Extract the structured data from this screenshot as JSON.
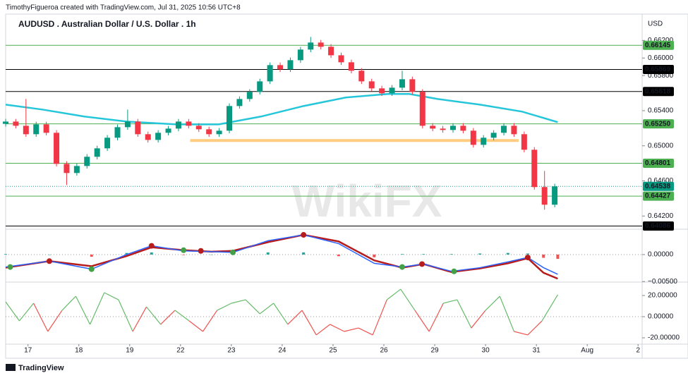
{
  "header": "TimothyFigueroa created with TradingView.com, Jul 31, 2025 10:56 UTC+8",
  "footer": "TradingView",
  "watermark": "WikiFX",
  "chart_data": [
    {
      "type": "candlestick",
      "title": "AUDUSD . Australian Dollar / U.S. Dollar . 1h",
      "currency": "USD",
      "xlim": [
        -0.44,
        12.08
      ],
      "xticks": [
        {
          "value": 0,
          "label": "17"
        },
        {
          "value": 1,
          "label": "18"
        },
        {
          "value": 2,
          "label": "19"
        },
        {
          "value": 3,
          "label": "22"
        },
        {
          "value": 4,
          "label": "23"
        },
        {
          "value": 5,
          "label": "24"
        },
        {
          "value": 6,
          "label": "25"
        },
        {
          "value": 7,
          "label": "26"
        },
        {
          "value": 8,
          "label": "29"
        },
        {
          "value": 9,
          "label": "30"
        },
        {
          "value": 10,
          "label": "31"
        },
        {
          "value": 11,
          "label": "Aug"
        },
        {
          "value": 12,
          "label": "2"
        }
      ],
      "ylim": [
        0.6405,
        0.665
      ],
      "yticks": [
        {
          "value": 0.662,
          "label": "0.66200"
        },
        {
          "value": 0.66,
          "label": "0.66000"
        },
        {
          "value": 0.658,
          "label": "0.65800"
        },
        {
          "value": 0.654,
          "label": "0.65400"
        },
        {
          "value": 0.65,
          "label": "0.65000"
        },
        {
          "value": 0.646,
          "label": "0.64600"
        },
        {
          "value": 0.642,
          "label": "0.64200"
        }
      ],
      "up_color": "#089981",
      "down_color": "#f23645",
      "x": [
        -0.44,
        -0.24,
        -0.04,
        0.16,
        0.36,
        0.56,
        0.76,
        0.96,
        1.16,
        1.36,
        1.56,
        1.76,
        1.96,
        2.16,
        2.36,
        2.56,
        2.76,
        2.96,
        3.16,
        3.36,
        3.56,
        3.76,
        3.96,
        4.16,
        4.36,
        4.56,
        4.76,
        4.96,
        5.16,
        5.36,
        5.56,
        5.76,
        5.96,
        6.16,
        6.36,
        6.56,
        6.76,
        6.96,
        7.16,
        7.36,
        7.56,
        7.76,
        7.96,
        8.16,
        8.36,
        8.56,
        8.76,
        8.96,
        9.16,
        9.36,
        9.56,
        9.76,
        9.96,
        10.16,
        10.36
      ],
      "open": [
        0.6525,
        0.65276,
        0.65228,
        0.65132,
        0.65244,
        0.65148,
        0.64794,
        0.6469,
        0.6477,
        0.64875,
        0.64971,
        0.65092,
        0.65212,
        0.65276,
        0.65132,
        0.65067,
        0.65148,
        0.65196,
        0.65276,
        0.65228,
        0.65188,
        0.65132,
        0.65172,
        0.65453,
        0.65533,
        0.65614,
        0.65734,
        0.65919,
        0.65871,
        0.65975,
        0.66096,
        0.66176,
        0.66128,
        0.66031,
        0.65951,
        0.65855,
        0.65734,
        0.65654,
        0.65598,
        0.65662,
        0.65758,
        0.65614,
        0.65228,
        0.65196,
        0.6518,
        0.65228,
        0.65172,
        0.65011,
        0.65092,
        0.65148,
        0.65228,
        0.65132,
        0.64955,
        0.6453,
        0.64329
      ],
      "high": [
        0.65306,
        0.65306,
        0.65533,
        0.65274,
        0.65274,
        0.65178,
        0.64824,
        0.648,
        0.64905,
        0.65001,
        0.65122,
        0.65242,
        0.65413,
        0.65306,
        0.65162,
        0.65178,
        0.65226,
        0.65306,
        0.65306,
        0.65258,
        0.65218,
        0.65202,
        0.65483,
        0.65563,
        0.65644,
        0.65764,
        0.65949,
        0.65949,
        0.66005,
        0.66126,
        0.6624,
        0.66206,
        0.66158,
        0.66061,
        0.65981,
        0.65885,
        0.65764,
        0.65684,
        0.65692,
        0.65855,
        0.65788,
        0.65644,
        0.65258,
        0.65226,
        0.65258,
        0.65258,
        0.65202,
        0.65122,
        0.65178,
        0.65258,
        0.65258,
        0.65162,
        0.64985,
        0.64714,
        0.64568
      ],
      "low": [
        0.6522,
        0.65198,
        0.65102,
        0.65102,
        0.65118,
        0.64764,
        0.64553,
        0.6466,
        0.6474,
        0.64845,
        0.64941,
        0.65062,
        0.65182,
        0.65102,
        0.65037,
        0.65037,
        0.65118,
        0.65166,
        0.65198,
        0.65158,
        0.65102,
        0.65102,
        0.65142,
        0.65423,
        0.65503,
        0.65584,
        0.65704,
        0.65841,
        0.65841,
        0.65945,
        0.66066,
        0.66098,
        0.66001,
        0.65921,
        0.65825,
        0.65704,
        0.65624,
        0.65568,
        0.65568,
        0.65632,
        0.65584,
        0.65198,
        0.65166,
        0.6515,
        0.6515,
        0.65142,
        0.64981,
        0.64981,
        0.65062,
        0.65118,
        0.65102,
        0.64925,
        0.645,
        0.64272,
        0.64299
      ],
      "close": [
        0.65276,
        0.65228,
        0.65132,
        0.65244,
        0.65148,
        0.64794,
        0.6469,
        0.6477,
        0.64875,
        0.64971,
        0.65092,
        0.65212,
        0.65276,
        0.65132,
        0.65067,
        0.65148,
        0.65196,
        0.65276,
        0.65228,
        0.65188,
        0.65132,
        0.65172,
        0.65453,
        0.65533,
        0.65614,
        0.65734,
        0.65919,
        0.65871,
        0.65975,
        0.66096,
        0.66176,
        0.66128,
        0.66031,
        0.65951,
        0.65855,
        0.65734,
        0.65654,
        0.65598,
        0.65662,
        0.65758,
        0.65614,
        0.65228,
        0.65196,
        0.6518,
        0.65228,
        0.65172,
        0.65011,
        0.65092,
        0.65148,
        0.65228,
        0.65132,
        0.64955,
        0.6453,
        0.64329,
        0.64538
      ],
      "lines": [
        {
          "color": "#26c6da",
          "x": [
            -0.44,
            0.28,
            1.11,
            1.94,
            2.92,
            3.75,
            4.58,
            5.42,
            6.25,
            7.08,
            7.5,
            8.06,
            8.89,
            9.72,
            10.42
          ],
          "values": [
            0.65469,
            0.65413,
            0.65333,
            0.65276,
            0.65244,
            0.65244,
            0.65333,
            0.65453,
            0.6555,
            0.6559,
            0.6559,
            0.65533,
            0.65469,
            0.65389,
            0.65269
          ]
        }
      ],
      "zone": {
        "value": 0.6506,
        "x": [
          3.19,
          9.65
        ],
        "color": "#ffcc80"
      },
      "levels": [
        {
          "value": 0.66145,
          "label": "0.66145",
          "color": "#4caf50"
        },
        {
          "value": 0.65869,
          "label": "0.65869",
          "color": "#000000"
        },
        {
          "value": 0.65618,
          "label": "0.65618",
          "color": "#000000"
        },
        {
          "value": 0.6525,
          "label": "0.65250",
          "color": "#4caf50"
        },
        {
          "value": 0.64801,
          "label": "0.64801",
          "color": "#4caf50"
        },
        {
          "value": 0.64538,
          "label": "0.64538",
          "color": "#089981",
          "style": "dotted"
        },
        {
          "value": 0.64427,
          "label": "0.64427",
          "color": "#4caf50"
        },
        {
          "value": 0.64086,
          "label": "0.64086",
          "color": "#000000"
        }
      ]
    },
    {
      "type": "macd",
      "ylim": [
        -0.0051,
        0.0047
      ],
      "yticks": [
        {
          "value": 0,
          "label": "0.00000"
        },
        {
          "value": -0.005,
          "label": "−0.00500"
        }
      ],
      "x": [
        -0.44,
        0.42,
        1.25,
        1.94,
        2.43,
        3.06,
        3.61,
        4.03,
        4.72,
        5.42,
        6.11,
        6.81,
        7.36,
        7.78,
        8.33,
        8.89,
        9.44,
        9.83,
        10.14,
        10.42
      ],
      "macd": [
        -0.0023,
        -0.00122,
        -0.0027,
        0,
        0.00162,
        0.00068,
        0.00054,
        0.00041,
        0.00257,
        0.00365,
        0.00203,
        -0.00162,
        -0.0023,
        -0.00176,
        -0.00311,
        -0.00243,
        -0.00135,
        -0.00054,
        -0.00243,
        -0.00365
      ],
      "signal": [
        -0.00243,
        -0.00122,
        -0.00216,
        -0.00027,
        0.00135,
        0.00081,
        0.00054,
        0.00068,
        0.0023,
        0.00365,
        0.00243,
        -0.00108,
        -0.00243,
        -0.00176,
        -0.00324,
        -0.00257,
        -0.00162,
        -0.00068,
        -0.00338,
        -0.00446
      ],
      "histogram": [
        0.0001,
        0,
        -0.0004,
        0.0003,
        0.0004,
        -0.0001,
        0,
        0.0002,
        0.0004,
        0.0004,
        -0.0003,
        -0.0005,
        0.0001,
        0.0001,
        0.0001,
        0.0002,
        0.0003,
        0.0002,
        -0.0006,
        -0.0008
      ],
      "macd_color": "#2962ff",
      "signal_color": "#b71c1c",
      "hist_up_color": "#26a69a",
      "hist_down_color": "#ef5350",
      "crosses": {
        "x": [
          -0.35,
          0.42,
          1.25,
          2.43,
          3.06,
          3.4,
          4.03,
          5.42,
          7.36,
          7.75,
          8.38,
          9.83
        ],
        "values": [
          -0.0023,
          -0.00122,
          -0.0027,
          0.00162,
          0.00081,
          0.00068,
          0.00041,
          0.00365,
          -0.0023,
          -0.00176,
          -0.00311,
          -0.00054
        ],
        "colors": [
          "#43a047",
          "#b71c1c",
          "#43a047",
          "#b71c1c",
          "#43a047",
          "#b71c1c",
          "#43a047",
          "#b71c1c",
          "#43a047",
          "#b71c1c",
          "#43a047",
          "#b71c1c"
        ]
      }
    },
    {
      "type": "oscillator",
      "ylim": [
        -26,
        32.7
      ],
      "yticks": [
        {
          "value": 20,
          "label": "20.00000"
        },
        {
          "value": 0,
          "label": "0.00000"
        },
        {
          "value": -20,
          "label": "-20.00000"
        }
      ],
      "x": [
        -0.44,
        -0.17,
        0.11,
        0.39,
        0.67,
        0.94,
        1.22,
        1.5,
        1.78,
        2.06,
        2.33,
        2.61,
        2.89,
        3.17,
        3.44,
        3.72,
        4.0,
        4.28,
        4.56,
        4.83,
        5.11,
        5.39,
        5.67,
        5.94,
        6.22,
        6.5,
        6.78,
        7.06,
        7.33,
        7.61,
        7.89,
        8.17,
        8.44,
        8.72,
        9.0,
        9.28,
        9.56,
        9.83,
        10.11,
        10.42
      ],
      "values": [
        14,
        -4,
        12.7,
        -14,
        6,
        19.3,
        -7.3,
        22.7,
        16,
        -14,
        9.3,
        -7.3,
        6,
        -4,
        -14,
        6,
        12.7,
        16,
        2.7,
        12.7,
        -7.3,
        6,
        -17.3,
        -7.3,
        -14,
        -10.7,
        -17.3,
        16,
        26,
        6,
        -14,
        12.7,
        16,
        -10.7,
        6,
        19.3,
        -14,
        -17.3,
        -4,
        20.7
      ],
      "up_color": "#66bb6a",
      "down_color": "#ef5350"
    }
  ]
}
